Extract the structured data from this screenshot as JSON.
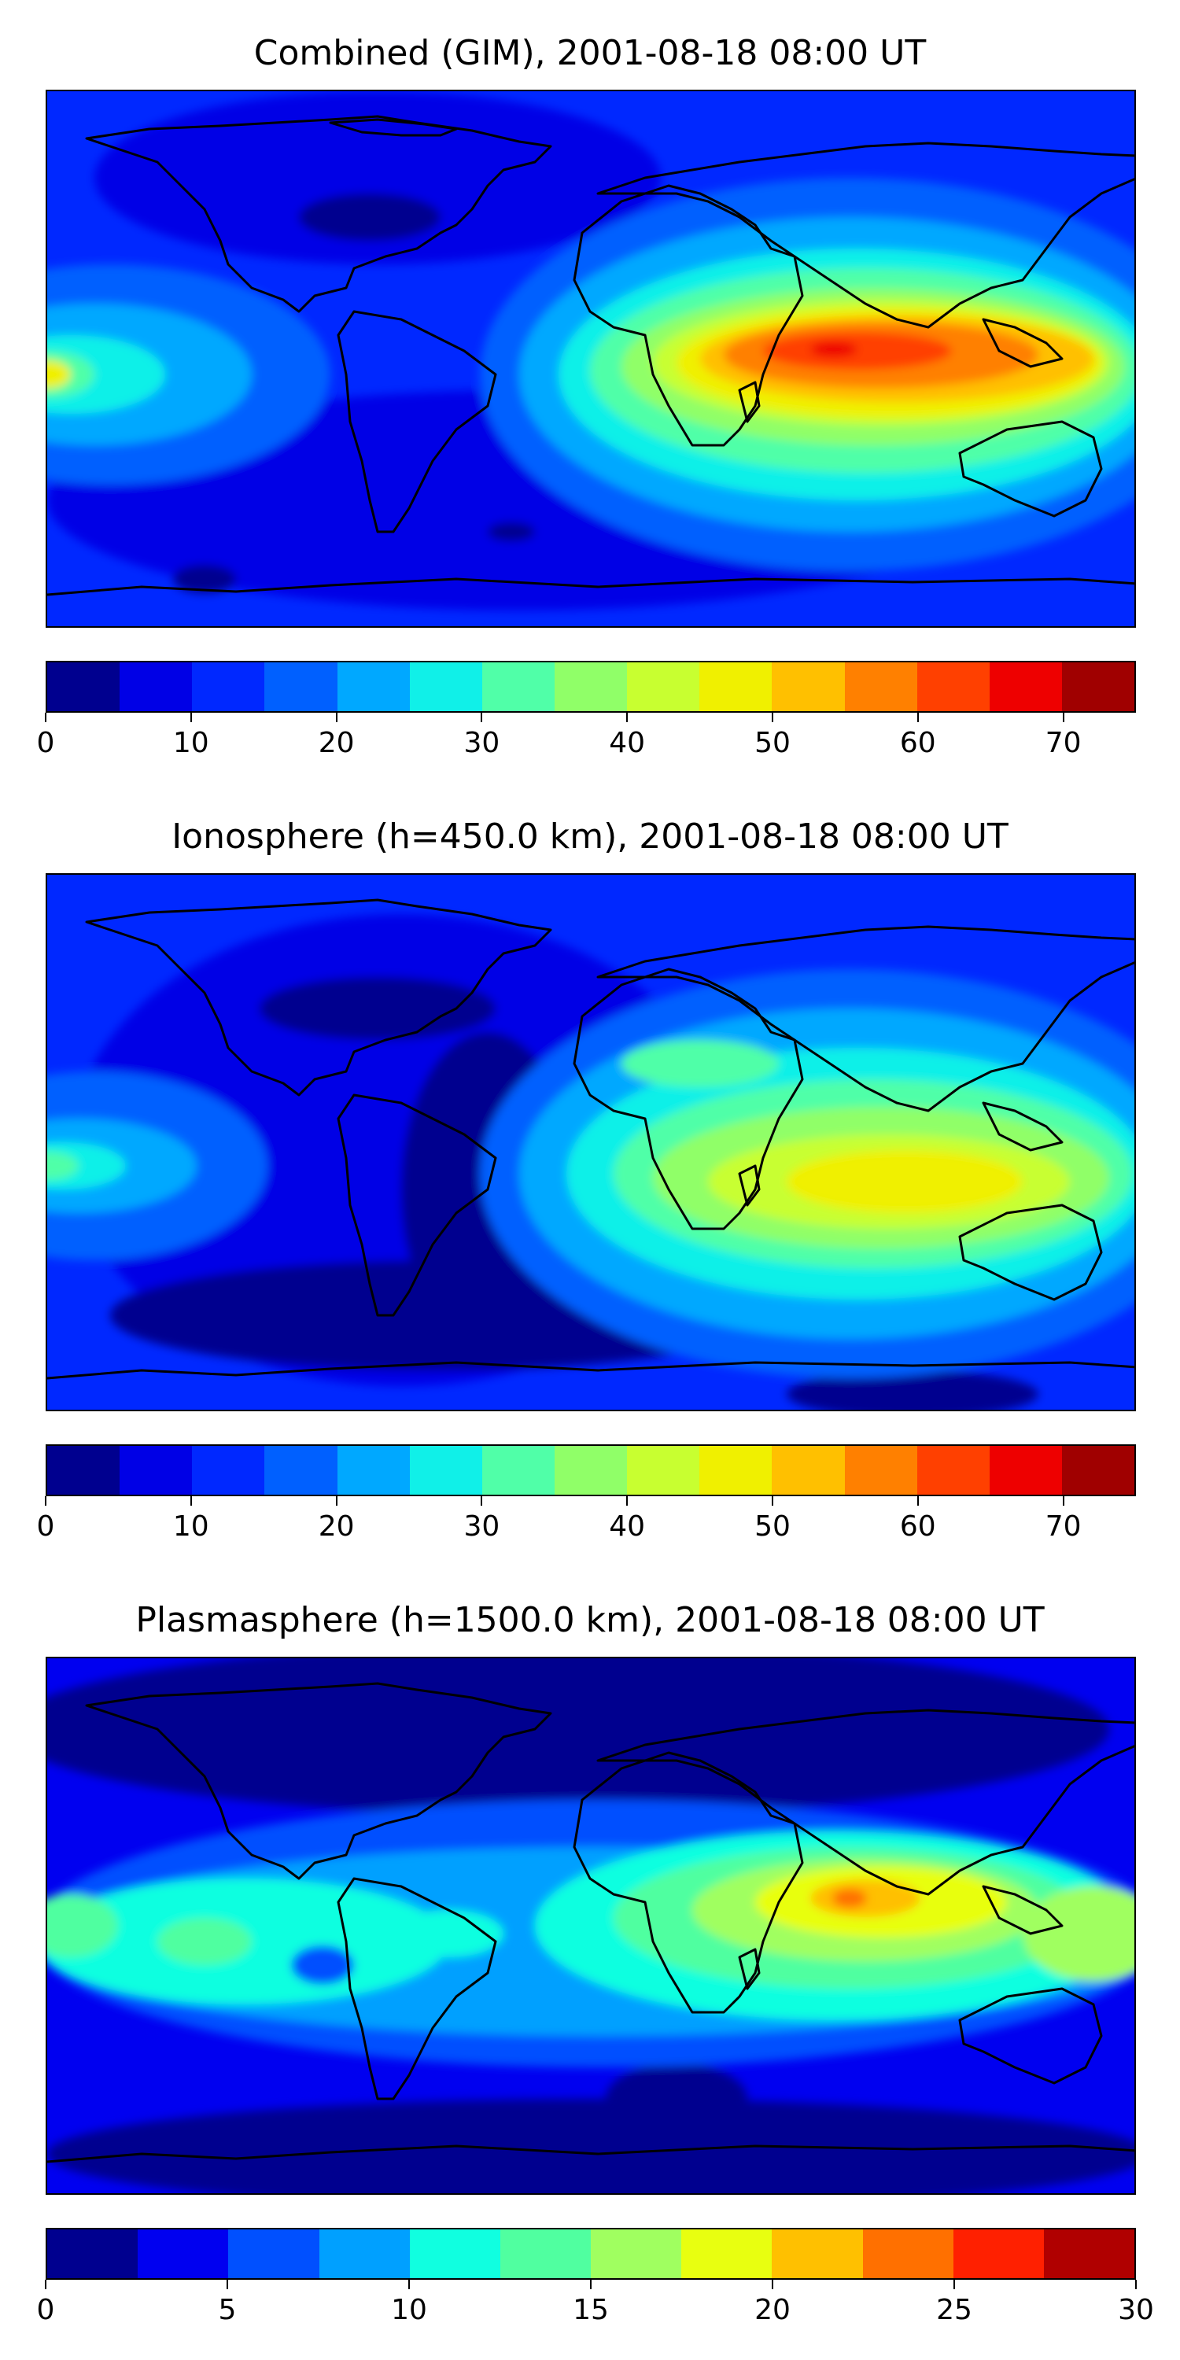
{
  "panels": [
    {
      "title": "Combined (GIM), 2001-08-18 08:00 UT",
      "colorbar": {
        "min": 0,
        "max": 75,
        "step": 5,
        "tick_labels": [
          "0",
          "10",
          "20",
          "30",
          "40",
          "50",
          "60",
          "70"
        ],
        "colors": [
          "#00008f",
          "#0000e6",
          "#0028ff",
          "#0060ff",
          "#00a8ff",
          "#10f0e8",
          "#50ffa8",
          "#90ff68",
          "#c8ff30",
          "#f0f000",
          "#ffc000",
          "#ff8000",
          "#ff4000",
          "#ee0000",
          "#a00000"
        ]
      }
    },
    {
      "title": "Ionosphere  (h=450.0 km), 2001-08-18 08:00 UT",
      "colorbar": {
        "min": 0,
        "max": 75,
        "step": 5,
        "tick_labels": [
          "0",
          "10",
          "20",
          "30",
          "40",
          "50",
          "60",
          "70"
        ],
        "colors": [
          "#00008f",
          "#0000e6",
          "#0028ff",
          "#0060ff",
          "#00a8ff",
          "#10f0e8",
          "#50ffa8",
          "#90ff68",
          "#c8ff30",
          "#f0f000",
          "#ffc000",
          "#ff8000",
          "#ff4000",
          "#ee0000",
          "#a00000"
        ]
      }
    },
    {
      "title": "Plasmasphere (h=1500.0 km), 2001-08-18 08:00 UT",
      "colorbar": {
        "min": 0,
        "max": 30,
        "step": 2.5,
        "tick_labels": [
          "0",
          "5",
          "10",
          "15",
          "20",
          "25",
          "30"
        ],
        "colors": [
          "#00008f",
          "#0000f0",
          "#0050ff",
          "#00a0ff",
          "#10ffe0",
          "#50ffa0",
          "#a0ff60",
          "#e8ff10",
          "#ffc000",
          "#ff7000",
          "#ff2000",
          "#b00000"
        ]
      }
    }
  ]
}
